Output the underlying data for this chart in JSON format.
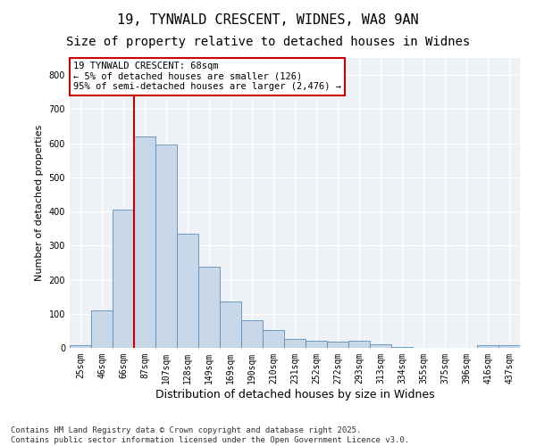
{
  "title1": "19, TYNWALD CRESCENT, WIDNES, WA8 9AN",
  "title2": "Size of property relative to detached houses in Widnes",
  "xlabel": "Distribution of detached houses by size in Widnes",
  "ylabel": "Number of detached properties",
  "categories": [
    "25sqm",
    "46sqm",
    "66sqm",
    "87sqm",
    "107sqm",
    "128sqm",
    "149sqm",
    "169sqm",
    "190sqm",
    "210sqm",
    "231sqm",
    "252sqm",
    "272sqm",
    "293sqm",
    "313sqm",
    "334sqm",
    "355sqm",
    "375sqm",
    "396sqm",
    "416sqm",
    "437sqm"
  ],
  "values": [
    7,
    110,
    405,
    620,
    597,
    335,
    237,
    137,
    80,
    53,
    25,
    22,
    18,
    20,
    10,
    2,
    0,
    0,
    0,
    8,
    9
  ],
  "bar_color": "#c8d8e8",
  "bar_edge_color": "#5b8db8",
  "vline_color": "#cc0000",
  "annotation_text_line1": "19 TYNWALD CRESCENT: 68sqm",
  "annotation_text_line2": "← 5% of detached houses are smaller (126)",
  "annotation_text_line3": "95% of semi-detached houses are larger (2,476) →",
  "annotation_box_color": "#cc0000",
  "footnote": "Contains HM Land Registry data © Crown copyright and database right 2025.\nContains public sector information licensed under the Open Government Licence v3.0.",
  "ylim": [
    0,
    850
  ],
  "yticks": [
    0,
    100,
    200,
    300,
    400,
    500,
    600,
    700,
    800
  ],
  "bg_color": "#eef2f7",
  "title1_fontsize": 11,
  "title2_fontsize": 10,
  "axis_label_fontsize": 8,
  "tick_fontsize": 7,
  "footnote_fontsize": 6.5
}
